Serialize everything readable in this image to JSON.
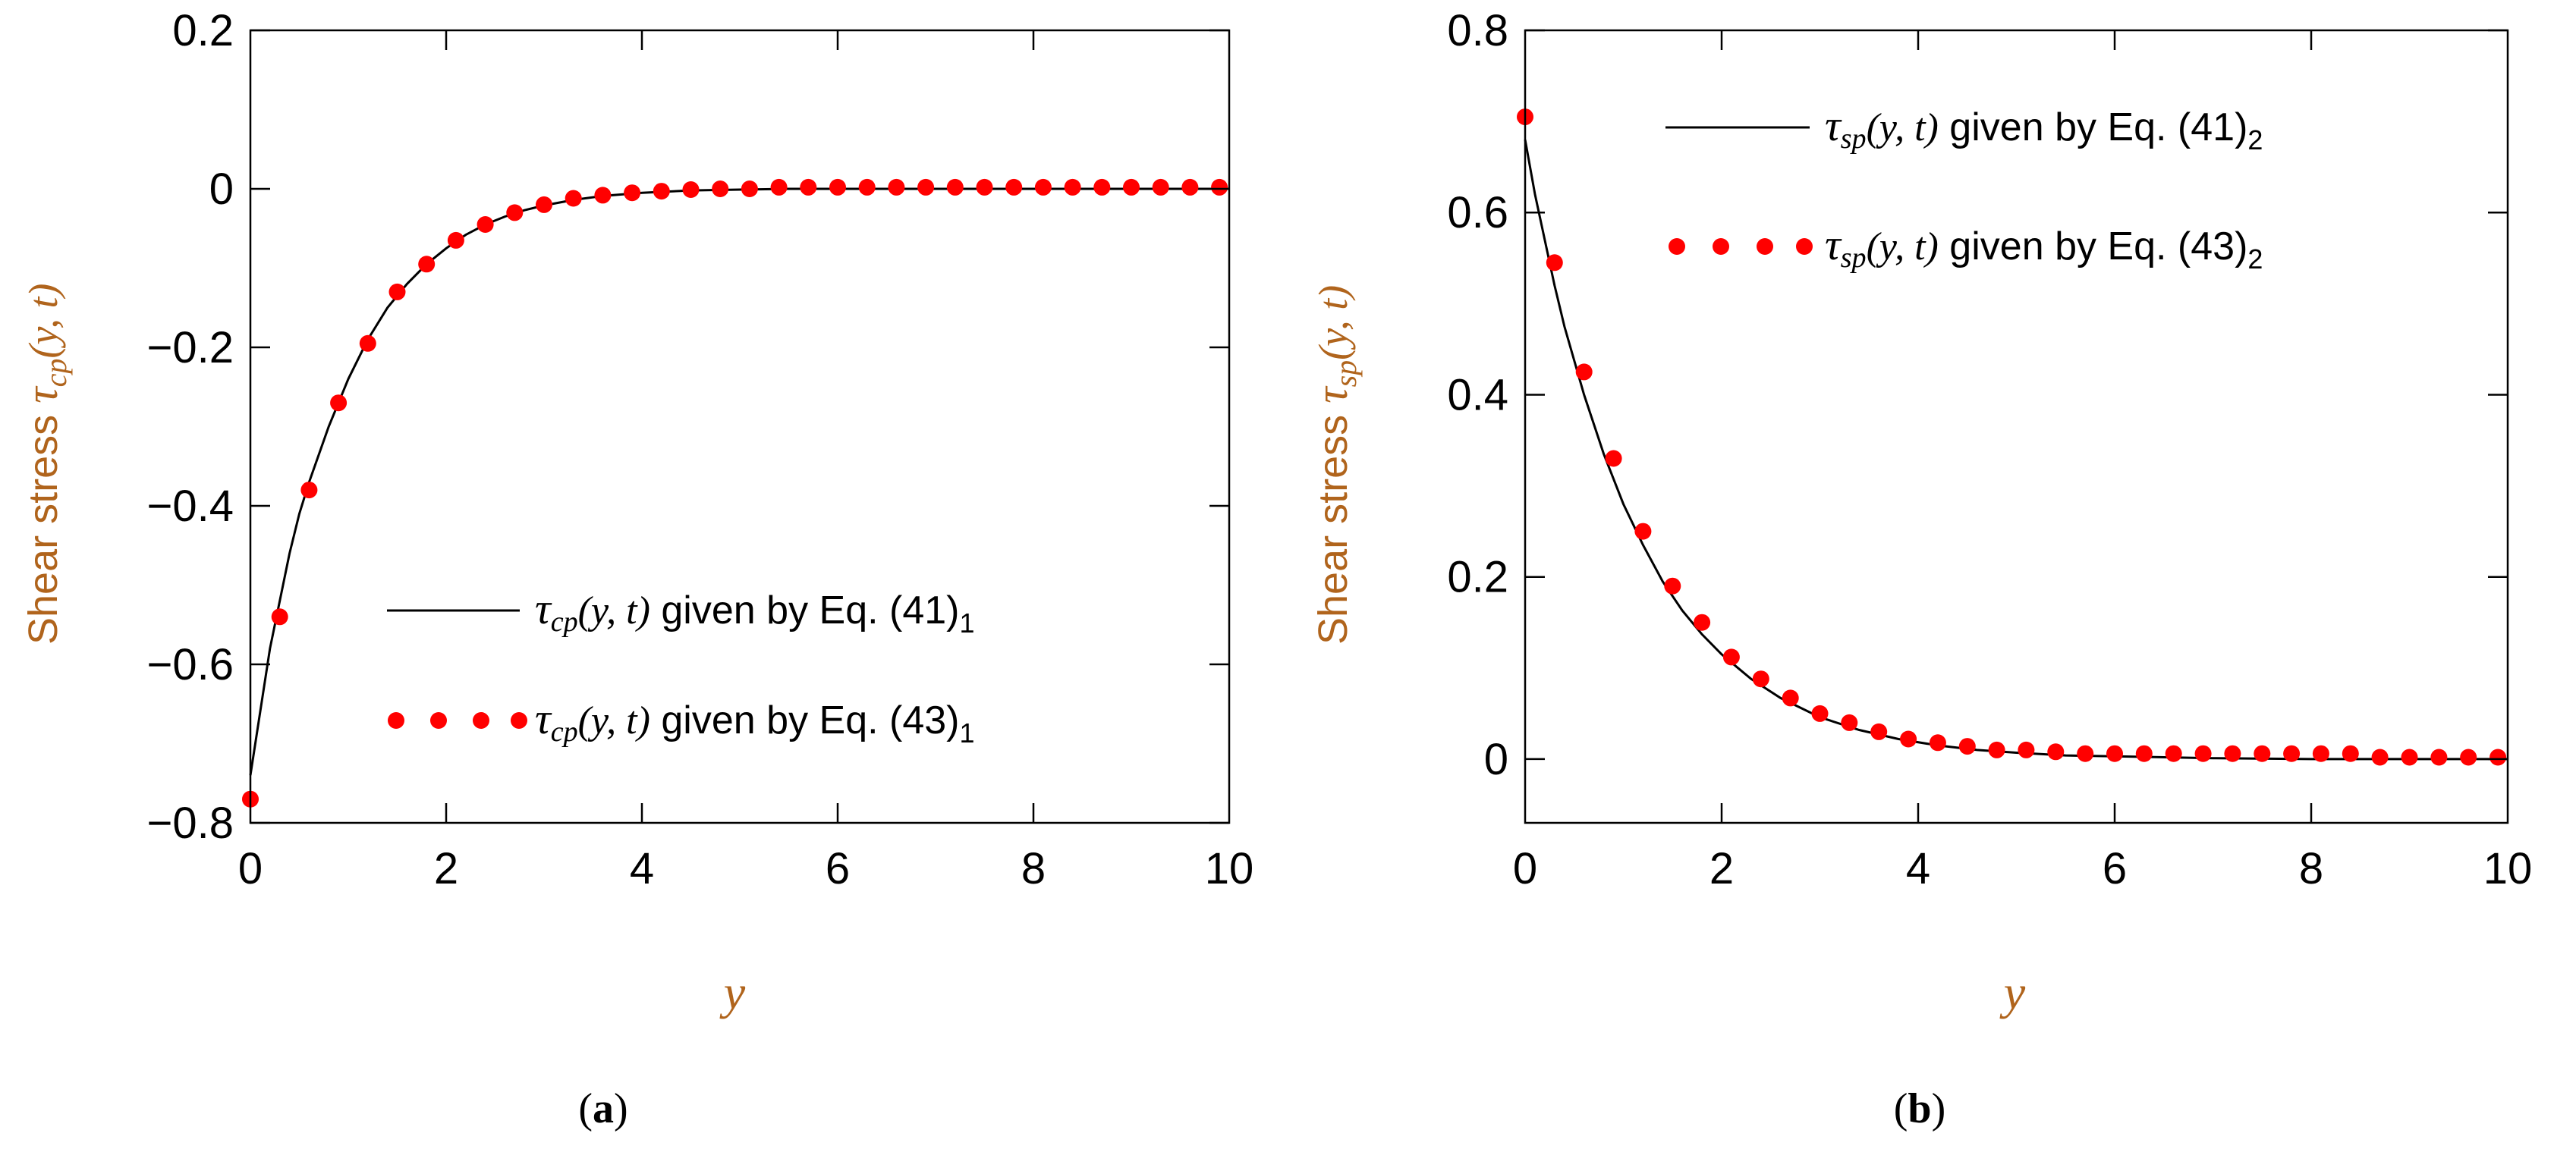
{
  "colors": {
    "marker": "#ff0000",
    "line": "#000000",
    "axis_label": "#b0641c"
  },
  "chart_data": [
    {
      "type": "line",
      "panel": "a",
      "caption_open": "(",
      "caption_letter": "a",
      "caption_close": ")",
      "xlabel": "y",
      "ylabel_prefix": "Shear stress ",
      "ylabel_tau": "τ",
      "ylabel_sub": "cp",
      "ylabel_args": "(y, t)",
      "xlim": [
        0,
        10
      ],
      "ylim": [
        -0.8,
        0.2
      ],
      "x_ticks": [
        0,
        2,
        4,
        6,
        8,
        10
      ],
      "y_ticks": [
        -0.8,
        -0.6,
        -0.4,
        -0.2,
        0,
        0.2
      ],
      "x_tick_labels": [
        "0",
        "2",
        "4",
        "6",
        "8",
        "10"
      ],
      "y_tick_labels": [
        "−0.8",
        "−0.6",
        "−0.4",
        "−0.2",
        "0",
        "0.2"
      ],
      "legend_position": "lower-right",
      "series": [
        {
          "name": "τcp(y, t) given by Eq. (41)1",
          "style": "line",
          "legend_tau": "τ",
          "legend_sub": "cp",
          "legend_args": "(y, t)",
          "legend_text": " given by Eq. (41)",
          "legend_index": "1",
          "x": [
            0,
            0.1,
            0.2,
            0.3,
            0.4,
            0.5,
            0.6,
            0.8,
            1.0,
            1.2,
            1.4,
            1.6,
            1.8,
            2.0,
            2.2,
            2.4,
            2.6,
            2.8,
            3.0,
            3.3,
            3.6,
            4.0,
            4.5,
            5.0,
            5.5,
            6.0,
            7.0,
            8.0,
            9.0,
            10.0
          ],
          "y": [
            -0.74,
            -0.66,
            -0.58,
            -0.52,
            -0.46,
            -0.41,
            -0.37,
            -0.3,
            -0.24,
            -0.19,
            -0.15,
            -0.12,
            -0.095,
            -0.075,
            -0.058,
            -0.045,
            -0.035,
            -0.027,
            -0.021,
            -0.014,
            -0.009,
            -0.005,
            -0.002,
            -0.001,
            0,
            0,
            0,
            0,
            0,
            0
          ]
        },
        {
          "name": "τcp(y, t) given by Eq. (43)1",
          "style": "markers",
          "legend_tau": "τ",
          "legend_sub": "cp",
          "legend_args": "(y, t)",
          "legend_text": " given by Eq. (43)",
          "legend_index": "1",
          "x": [
            0,
            0.3,
            0.6,
            0.9,
            1.2,
            1.5,
            1.8,
            2.1,
            2.4,
            2.7,
            3.0,
            3.3,
            3.6,
            3.9,
            4.2,
            4.5,
            4.8,
            5.1,
            5.4,
            5.7,
            6.0,
            6.3,
            6.6,
            6.9,
            7.2,
            7.5,
            7.8,
            8.1,
            8.4,
            8.7,
            9.0,
            9.3,
            9.6,
            9.9
          ],
          "y": [
            -0.77,
            -0.54,
            -0.38,
            -0.27,
            -0.195,
            -0.13,
            -0.095,
            -0.065,
            -0.045,
            -0.03,
            -0.02,
            -0.012,
            -0.008,
            -0.005,
            -0.003,
            -0.001,
            0,
            0,
            0.002,
            0.002,
            0.002,
            0.002,
            0.002,
            0.002,
            0.002,
            0.002,
            0.002,
            0.002,
            0.002,
            0.002,
            0.002,
            0.002,
            0.002,
            0.002
          ]
        }
      ]
    },
    {
      "type": "line",
      "panel": "b",
      "caption_open": "(",
      "caption_letter": "b",
      "caption_close": ")",
      "xlabel": "y",
      "ylabel_prefix": "Shear stress ",
      "ylabel_tau": "τ",
      "ylabel_sub": "sp",
      "ylabel_args": "(y, t)",
      "xlim": [
        0,
        10
      ],
      "ylim": [
        -0.07,
        0.8
      ],
      "x_ticks": [
        0,
        2,
        4,
        6,
        8,
        10
      ],
      "y_ticks": [
        0,
        0.2,
        0.4,
        0.6,
        0.8
      ],
      "x_tick_labels": [
        "0",
        "2",
        "4",
        "6",
        "8",
        "10"
      ],
      "y_tick_labels": [
        "0",
        "0.2",
        "0.4",
        "0.6",
        "0.8"
      ],
      "legend_position": "top-right",
      "series": [
        {
          "name": "τsp(y, t) given by Eq. (41)2",
          "style": "line",
          "legend_tau": "τ",
          "legend_sub": "sp",
          "legend_args": "(y, t)",
          "legend_text": " given by Eq. (41)",
          "legend_index": "2",
          "x": [
            0,
            0.1,
            0.2,
            0.3,
            0.4,
            0.6,
            0.8,
            1.0,
            1.2,
            1.4,
            1.6,
            1.8,
            2.0,
            2.3,
            2.6,
            3.0,
            3.4,
            3.8,
            4.2,
            4.6,
            5.0,
            5.5,
            6.0,
            7.0,
            8.0,
            9.0,
            10.0
          ],
          "y": [
            0.68,
            0.62,
            0.57,
            0.52,
            0.475,
            0.4,
            0.335,
            0.28,
            0.235,
            0.195,
            0.163,
            0.137,
            0.115,
            0.088,
            0.067,
            0.046,
            0.032,
            0.022,
            0.015,
            0.01,
            0.007,
            0.004,
            0.003,
            0.001,
            0,
            0,
            0
          ]
        },
        {
          "name": "τsp(y, t) given by Eq. (43)2",
          "style": "markers",
          "legend_tau": "τ",
          "legend_sub": "sp",
          "legend_args": "(y, t)",
          "legend_text": " given by Eq. (43)",
          "legend_index": "2",
          "x": [
            0,
            0.3,
            0.6,
            0.9,
            1.2,
            1.5,
            1.8,
            2.1,
            2.4,
            2.7,
            3.0,
            3.3,
            3.6,
            3.9,
            4.2,
            4.5,
            4.8,
            5.1,
            5.4,
            5.7,
            6.0,
            6.3,
            6.6,
            6.9,
            7.2,
            7.5,
            7.8,
            8.1,
            8.4,
            8.7,
            9.0,
            9.3,
            9.6,
            9.9
          ],
          "y": [
            0.705,
            0.545,
            0.425,
            0.33,
            0.25,
            0.19,
            0.15,
            0.112,
            0.088,
            0.067,
            0.05,
            0.04,
            0.03,
            0.022,
            0.018,
            0.014,
            0.01,
            0.01,
            0.008,
            0.006,
            0.006,
            0.006,
            0.006,
            0.006,
            0.006,
            0.006,
            0.006,
            0.006,
            0.006,
            0.002,
            0.002,
            0.002,
            0.002,
            0.002
          ]
        }
      ]
    }
  ]
}
